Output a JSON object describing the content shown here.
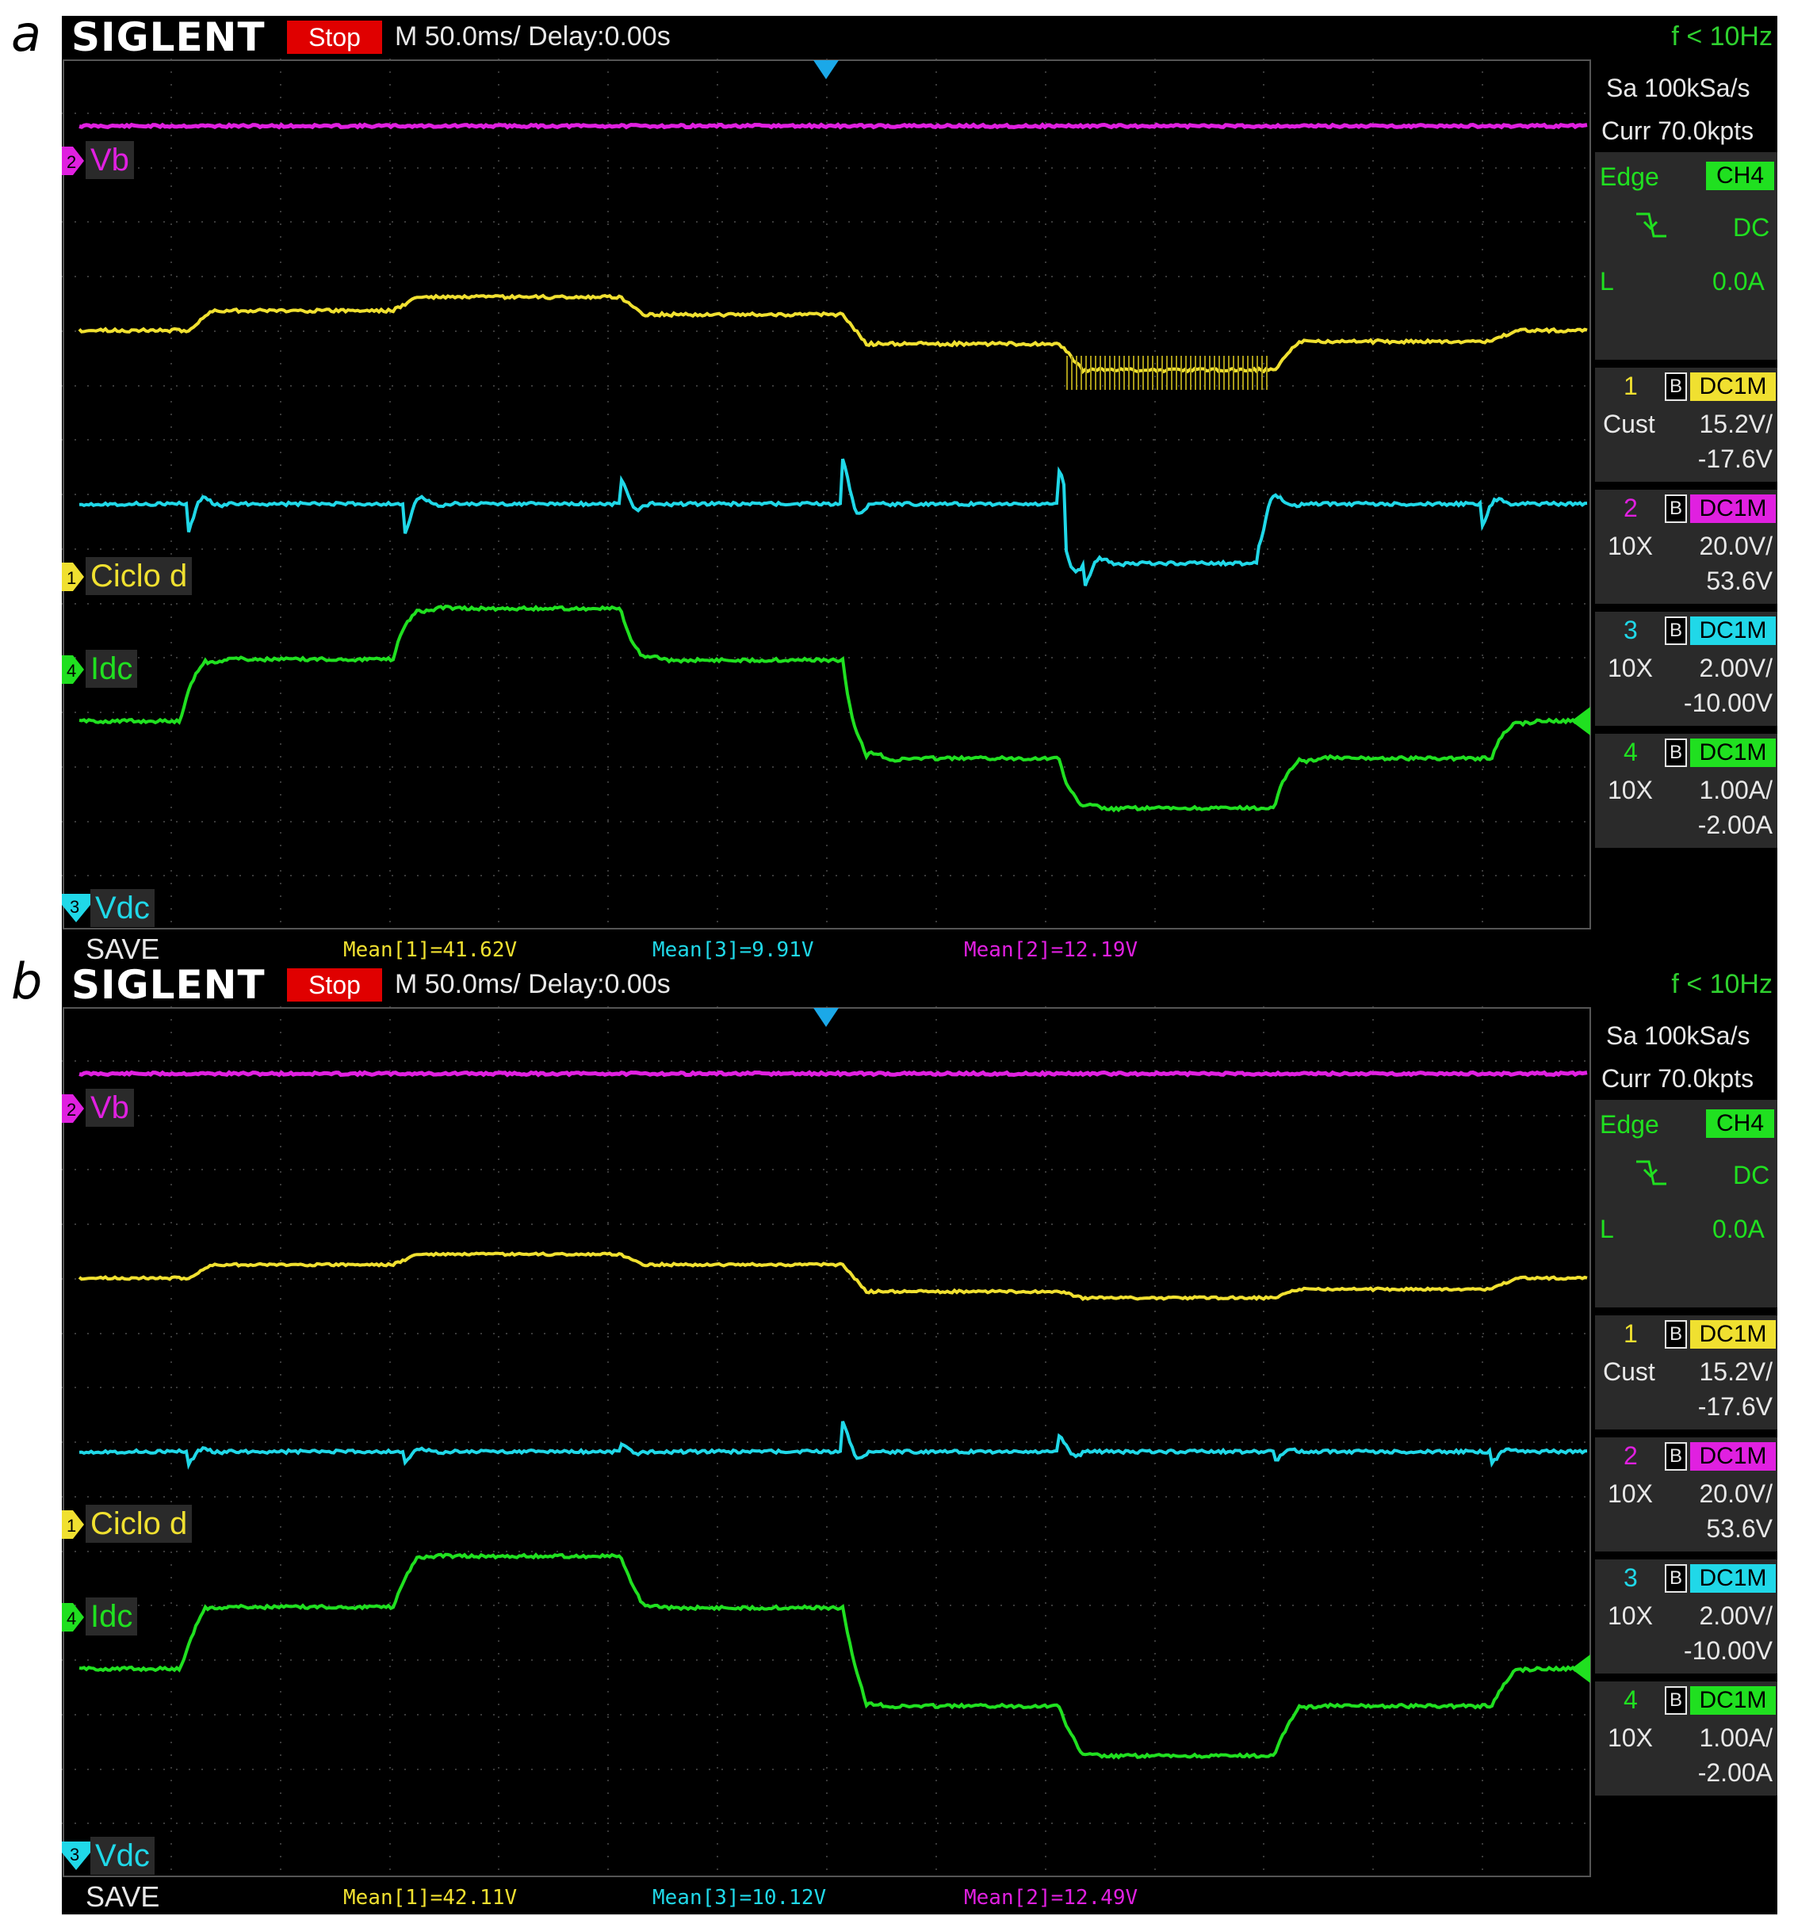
{
  "panels": [
    {
      "letter": "a",
      "logo": "SIGLENT",
      "run_state": "Stop",
      "timebase": "M 50.0ms/ Delay:0.00s",
      "freq": "f < 10Hz",
      "sample_rate": "Sa 100kSa/s",
      "memory": "Curr 70.0kpts",
      "trigger": {
        "type": "Edge",
        "source": "CH4",
        "coupling": "DC",
        "level_prefix": "L",
        "level": "0.0A"
      },
      "channels": [
        {
          "num": "1",
          "bw": "B",
          "coupling": "DC1M",
          "probe": "Cust",
          "scale": "15.2V/",
          "offset": "-17.6V",
          "color": "#f0e030"
        },
        {
          "num": "2",
          "bw": "B",
          "coupling": "DC1M",
          "probe": "10X",
          "scale": "20.0V/",
          "offset": "53.6V",
          "color": "#e020e0"
        },
        {
          "num": "3",
          "bw": "B",
          "coupling": "DC1M",
          "probe": "10X",
          "scale": "2.00V/",
          "offset": "-10.00V",
          "color": "#20d8e8"
        },
        {
          "num": "4",
          "bw": "B",
          "coupling": "DC1M",
          "probe": "10X",
          "scale": "1.00A/",
          "offset": "-2.00A",
          "color": "#20e020"
        }
      ],
      "labels": {
        "vb": "Vb",
        "ciclo": "Ciclo d",
        "idc": "Idc",
        "vdc": "Vdc"
      },
      "marker_nums": {
        "vb": "2",
        "ciclo": "1",
        "idc": "4",
        "vdc": "3"
      },
      "save": "SAVE",
      "means": [
        {
          "text": "Mean[1]=41.62V",
          "color": "#f0e030"
        },
        {
          "text": "Mean[3]=9.91V",
          "color": "#20d8e8"
        },
        {
          "text": "Mean[2]=12.19V",
          "color": "#e020e0"
        }
      ]
    },
    {
      "letter": "b",
      "logo": "SIGLENT",
      "run_state": "Stop",
      "timebase": "M 50.0ms/ Delay:0.00s",
      "freq": "f < 10Hz",
      "sample_rate": "Sa 100kSa/s",
      "memory": "Curr 70.0kpts",
      "trigger": {
        "type": "Edge",
        "source": "CH4",
        "coupling": "DC",
        "level_prefix": "L",
        "level": "0.0A"
      },
      "channels": [
        {
          "num": "1",
          "bw": "B",
          "coupling": "DC1M",
          "probe": "Cust",
          "scale": "15.2V/",
          "offset": "-17.6V",
          "color": "#f0e030"
        },
        {
          "num": "2",
          "bw": "B",
          "coupling": "DC1M",
          "probe": "10X",
          "scale": "20.0V/",
          "offset": "53.6V",
          "color": "#e020e0"
        },
        {
          "num": "3",
          "bw": "B",
          "coupling": "DC1M",
          "probe": "10X",
          "scale": "2.00V/",
          "offset": "-10.00V",
          "color": "#20d8e8"
        },
        {
          "num": "4",
          "bw": "B",
          "coupling": "DC1M",
          "probe": "10X",
          "scale": "1.00A/",
          "offset": "-2.00A",
          "color": "#20e020"
        }
      ],
      "labels": {
        "vb": "Vb",
        "ciclo": "Ciclo d",
        "idc": "Idc",
        "vdc": "Vdc"
      },
      "marker_nums": {
        "vb": "2",
        "ciclo": "1",
        "idc": "4",
        "vdc": "3"
      },
      "save": "SAVE",
      "means": [
        {
          "text": "Mean[1]=42.11V",
          "color": "#f0e030"
        },
        {
          "text": "Mean[3]=10.12V",
          "color": "#20d8e8"
        },
        {
          "text": "Mean[2]=12.49V",
          "color": "#e020e0"
        }
      ]
    }
  ]
}
